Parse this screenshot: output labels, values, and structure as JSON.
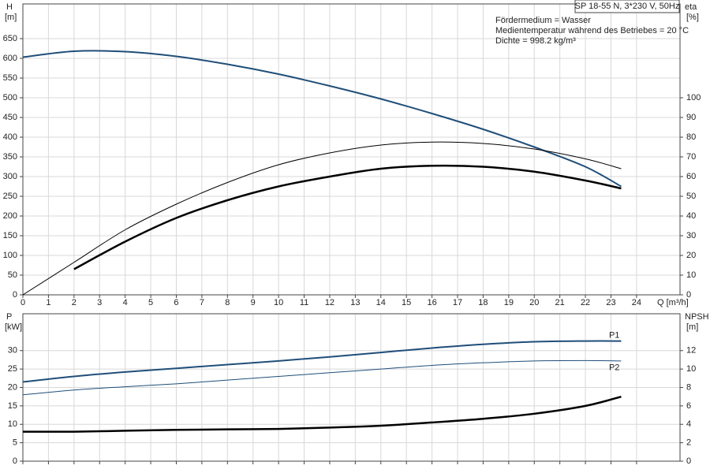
{
  "chart_data": [
    {
      "type": "line",
      "title": "SP 18-55 N, 3*230 V, 50Hz",
      "annotations": [
        "Fördermedium = Wasser",
        "Medientemperatur während des Betriebes = 20 °C",
        "Dichte = 998.2 kg/m³"
      ],
      "xlabel": "Q [m³/h]",
      "ylabel": "H",
      "yunit": "[m]",
      "y2label": "eta",
      "y2unit": "[%]",
      "x": [
        0,
        2,
        4,
        6,
        8,
        10,
        12,
        14,
        16,
        18,
        20,
        22,
        23.4
      ],
      "xlim": [
        0,
        25.7
      ],
      "xticks": [
        0,
        1,
        2,
        3,
        4,
        5,
        6,
        7,
        8,
        9,
        10,
        11,
        12,
        13,
        14,
        15,
        16,
        17,
        18,
        19,
        20,
        21,
        22,
        23,
        24
      ],
      "ylim": [
        0,
        738
      ],
      "yticks": [
        0,
        50,
        100,
        150,
        200,
        250,
        300,
        350,
        400,
        450,
        500,
        550,
        600,
        650
      ],
      "y2lim": [
        0,
        147.6
      ],
      "y2ticks": [
        0,
        10,
        20,
        30,
        40,
        50,
        60,
        70,
        80,
        90,
        100
      ],
      "grid": true,
      "series": [
        {
          "color": "#1f4e79",
          "width": 2,
          "values": [
            603,
            618,
            617,
            605,
            585,
            560,
            530,
            497,
            460,
            420,
            375,
            325,
            275
          ]
        },
        {
          "color": "#000000",
          "width": 1,
          "axis": "y2",
          "values": [
            0,
            16.5,
            33,
            46,
            57,
            66,
            72,
            76,
            77.5,
            76.8,
            74,
            69,
            64
          ]
        },
        {
          "color": "#000000",
          "width": 2.5,
          "axis": "y2",
          "values": [
            null,
            13,
            27,
            39,
            48,
            55,
            60,
            64,
            65.5,
            65,
            62.5,
            58,
            54
          ]
        }
      ]
    },
    {
      "type": "line",
      "ylabel": "P",
      "yunit": "[kW]",
      "y2label": "NPSH",
      "y2unit": "[m]",
      "x": [
        0,
        2,
        4,
        6,
        8,
        10,
        12,
        14,
        16,
        18,
        20,
        22,
        23.4
      ],
      "xlim": [
        0,
        25.7
      ],
      "xticks": [
        0,
        1,
        2,
        3,
        4,
        5,
        6,
        7,
        8,
        9,
        10,
        11,
        12,
        13,
        14,
        15,
        16,
        17,
        18,
        19,
        20,
        21,
        22,
        23,
        24
      ],
      "ylim": [
        0,
        40
      ],
      "yticks": [
        0,
        5,
        10,
        15,
        20,
        25,
        30
      ],
      "y2lim": [
        0,
        16
      ],
      "y2ticks": [
        0,
        2,
        4,
        6,
        8,
        10,
        12
      ],
      "grid": true,
      "series": [
        {
          "name": "P1",
          "color": "#1f4e79",
          "width": 2,
          "values": [
            21.5,
            23,
            24.2,
            25.2,
            26.2,
            27.2,
            28.3,
            29.5,
            30.7,
            31.7,
            32.4,
            32.6,
            32.6
          ]
        },
        {
          "name": "P2",
          "color": "#1f4e79",
          "width": 1,
          "values": [
            18,
            19.3,
            20.2,
            21,
            22,
            23,
            24,
            25,
            26,
            26.7,
            27.2,
            27.3,
            27.2
          ]
        },
        {
          "color": "#000000",
          "width": 2.5,
          "axis": "y2",
          "values": [
            3.2,
            3.2,
            3.3,
            3.4,
            3.45,
            3.5,
            3.65,
            3.85,
            4.2,
            4.6,
            5.15,
            6.0,
            7.0
          ]
        }
      ]
    }
  ]
}
